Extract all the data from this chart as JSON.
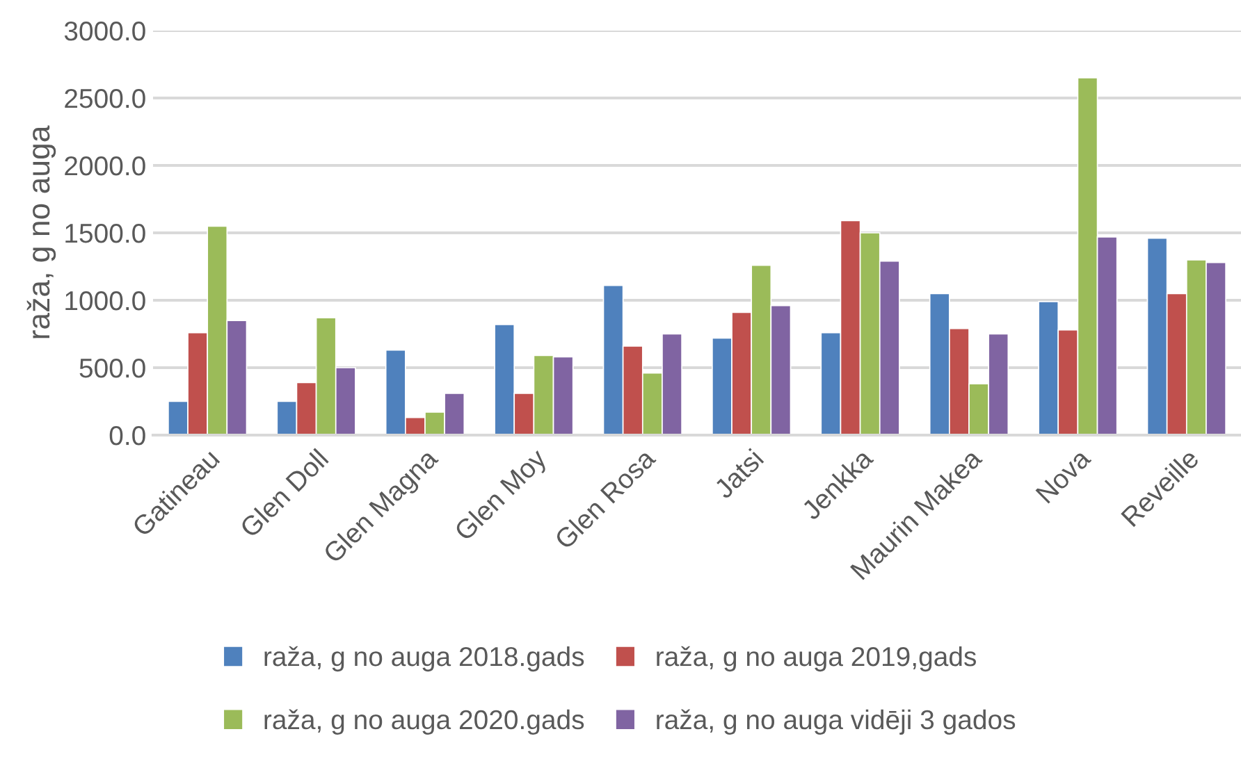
{
  "chart_data": {
    "type": "bar",
    "ylabel": "raža, g no auga",
    "categories": [
      "Gatineau",
      "Glen Doll",
      "Glen Magna",
      "Glen Moy",
      "Glen Rosa",
      "Jatsi",
      "Jenkka",
      "Maurin Makea",
      "Nova",
      "Reveille"
    ],
    "series": [
      {
        "name": "raža, g no auga 2018.gads",
        "color": "#4f81bd",
        "values": [
          250,
          250,
          630,
          820,
          1110,
          720,
          760,
          1050,
          990,
          1460
        ]
      },
      {
        "name": "raža, g no auga 2019,gads",
        "color": "#c0504d",
        "values": [
          760,
          390,
          130,
          310,
          660,
          910,
          1590,
          790,
          780,
          1050
        ]
      },
      {
        "name": "raža, g no auga 2020.gads",
        "color": "#9bbb59",
        "values": [
          1550,
          870,
          170,
          590,
          460,
          1260,
          1500,
          380,
          2650,
          1300
        ]
      },
      {
        "name": "raža, g no auga vidēji 3 gados",
        "color": "#8064a2",
        "values": [
          850,
          500,
          310,
          580,
          750,
          960,
          1290,
          750,
          1470,
          1280
        ]
      }
    ],
    "ylim": [
      0,
      3000
    ],
    "yticks": [
      {
        "value": 0,
        "label": "0.0"
      },
      {
        "value": 500,
        "label": "500.0"
      },
      {
        "value": 1000,
        "label": "1000.0"
      },
      {
        "value": 1500,
        "label": "1500.0"
      },
      {
        "value": 2000,
        "label": "2000.0"
      },
      {
        "value": 2500,
        "label": "2500.0"
      },
      {
        "value": 3000,
        "label": "3000.0"
      }
    ],
    "grid": "y",
    "legend": "bottom"
  }
}
